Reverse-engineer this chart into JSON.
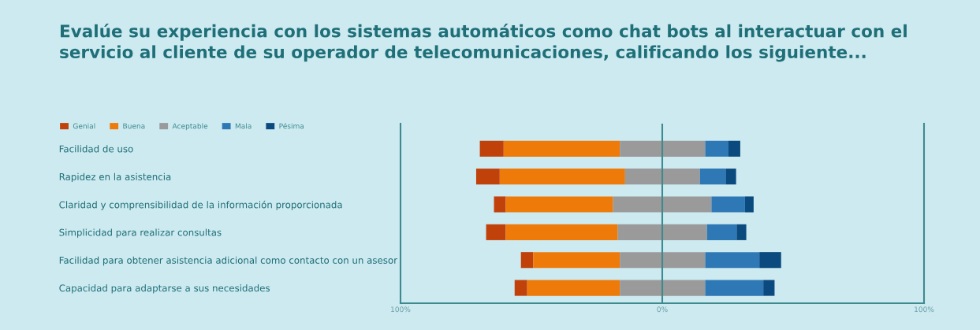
{
  "chart_data": {
    "type": "bar",
    "orientation": "horizontal",
    "title": "Evalúe su experiencia con los sistemas automáticos como chat bots al interactuar con el servicio al cliente de su operador de telecomunicaciones, calificando los siguiente...",
    "categories": [
      "Facilidad de uso",
      "Rapidez en la asistencia",
      "Claridad y comprensibilidad de la información proporcionada",
      "Simplicidad para realizar consultas",
      "Facilidad para obtener asistencia adicional como contacto con un asesor",
      "Capacidad para adaptarse a sus necesidades"
    ],
    "series": [
      {
        "name": "Genial",
        "color": "#c0410a",
        "base": [
          -69.7,
          -71.1,
          -64.3,
          -67.3,
          -54.0,
          -56.4
        ],
        "values": [
          9.1,
          9.0,
          4.5,
          7.5,
          4.7,
          4.8
        ]
      },
      {
        "name": "Buena",
        "color": "#ee7a0a",
        "base": [
          -60.6,
          -62.1,
          -59.8,
          -59.8,
          -49.3,
          -51.6
        ],
        "values": [
          44.4,
          47.9,
          41.0,
          42.8,
          33.1,
          35.4
        ]
      },
      {
        "name": "Aceptable",
        "color": "#9a9a9a",
        "base": [
          -16.2,
          -14.2,
          -18.8,
          -17.0,
          -16.2,
          -16.2
        ],
        "values": [
          32.6,
          28.6,
          37.6,
          34.1,
          32.6,
          32.6
        ]
      },
      {
        "name": "Mala",
        "color": "#2e79b5",
        "base": [
          16.4,
          14.4,
          18.8,
          17.1,
          16.4,
          16.4
        ],
        "values": [
          8.9,
          9.8,
          12.8,
          11.3,
          20.7,
          22.2
        ]
      },
      {
        "name": "Pésima",
        "color": "#0b4a7e",
        "base": [
          25.3,
          24.2,
          31.6,
          28.4,
          37.1,
          38.6
        ],
        "values": [
          4.5,
          4.0,
          3.3,
          3.7,
          8.3,
          4.3
        ]
      }
    ],
    "xlim": [
      -100,
      100
    ],
    "xticks": [
      {
        "value": -100,
        "label": "100%"
      },
      {
        "value": 0,
        "label": "0%"
      },
      {
        "value": 100,
        "label": "100%"
      }
    ],
    "ref_lines": [
      {
        "axis": "x",
        "value": 0,
        "color": "#3d8a8f"
      }
    ],
    "legend": "top left"
  }
}
